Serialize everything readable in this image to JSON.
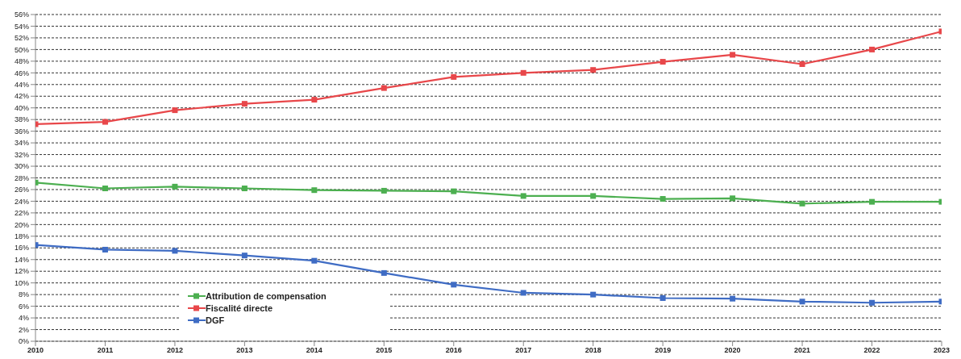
{
  "chart_data": {
    "type": "line",
    "x": [
      2010,
      2011,
      2012,
      2013,
      2014,
      2015,
      2016,
      2017,
      2018,
      2019,
      2020,
      2021,
      2022,
      2023
    ],
    "xlim": [
      2010,
      2023
    ],
    "xticks": [
      2010,
      2011,
      2012,
      2013,
      2014,
      2015,
      2016,
      2017,
      2018,
      2019,
      2020,
      2021,
      2022,
      2023
    ],
    "ylim": [
      0,
      56
    ],
    "yticks": [
      {
        "value": 0,
        "label": "0%"
      },
      {
        "value": 2,
        "label": "2%"
      },
      {
        "value": 4,
        "label": "4%"
      },
      {
        "value": 6,
        "label": "6%"
      },
      {
        "value": 8,
        "label": "8%"
      },
      {
        "value": 10,
        "label": "10%"
      },
      {
        "value": 12,
        "label": "12%"
      },
      {
        "value": 14,
        "label": "14%"
      },
      {
        "value": 16,
        "label": "16%"
      },
      {
        "value": 18,
        "label": "18%"
      },
      {
        "value": 20,
        "label": "20%"
      },
      {
        "value": 22,
        "label": "22%"
      },
      {
        "value": 24,
        "label": "24%"
      },
      {
        "value": 26,
        "label": "26%"
      },
      {
        "value": 28,
        "label": "28%"
      },
      {
        "value": 30,
        "label": "30%"
      },
      {
        "value": 32,
        "label": "32%"
      },
      {
        "value": 34,
        "label": "34%"
      },
      {
        "value": 36,
        "label": "36%"
      },
      {
        "value": 38,
        "label": "38%"
      },
      {
        "value": 40,
        "label": "40%"
      },
      {
        "value": 42,
        "label": "42%"
      },
      {
        "value": 44,
        "label": "44%"
      },
      {
        "value": 46,
        "label": "46%"
      },
      {
        "value": 48,
        "label": "48%"
      },
      {
        "value": 50,
        "label": "50%"
      },
      {
        "value": 52,
        "label": "52%"
      },
      {
        "value": 54,
        "label": "54%"
      },
      {
        "value": 56,
        "label": "56%"
      }
    ],
    "grid": "y",
    "legend": "bottom left",
    "marker": "square",
    "line_style": "solid",
    "series": [
      {
        "name": "Attribution de compensation",
        "color": "#4caf50",
        "values": [
          27.2,
          26.2,
          26.5,
          26.2,
          25.9,
          25.8,
          25.7,
          24.9,
          24.9,
          24.4,
          24.5,
          23.6,
          23.9,
          23.9
        ]
      },
      {
        "name": "Fiscalité directe",
        "color": "#e8474a",
        "values": [
          37.2,
          37.6,
          39.6,
          40.7,
          41.4,
          43.4,
          45.3,
          46.0,
          46.5,
          47.9,
          49.1,
          47.5,
          50.0,
          53.1
        ]
      },
      {
        "name": "DGF",
        "color": "#3f6cc4",
        "values": [
          16.5,
          15.7,
          15.5,
          14.7,
          13.8,
          11.7,
          9.7,
          8.3,
          8.0,
          7.4,
          7.3,
          6.8,
          6.6,
          6.8
        ]
      }
    ]
  }
}
